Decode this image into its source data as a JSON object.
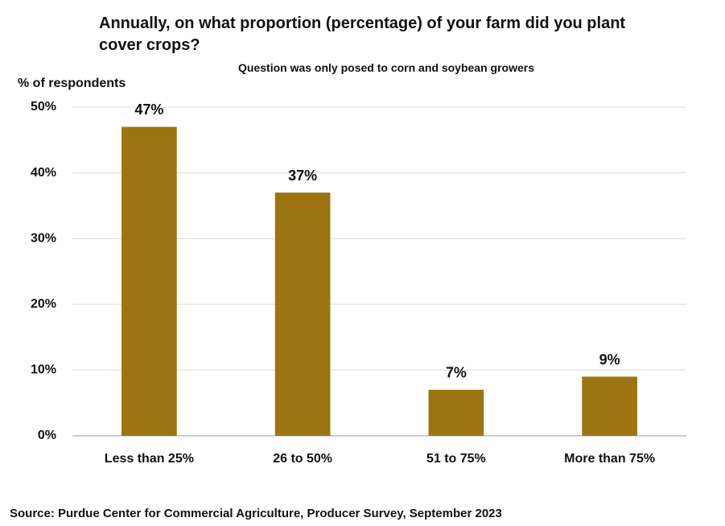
{
  "chart_data": {
    "type": "bar",
    "title": "Annually, on what proportion (percentage) of your farm did you plant cover crops?",
    "subtitle": "Question was only posed to corn and soybean growers",
    "y_label": "% of respondents",
    "source": "Source: Purdue Center for Commercial Agriculture, Producer Survey, September 2023",
    "categories": [
      "Less than 25%",
      "26 to 50%",
      "51 to 75%",
      "More than 75%"
    ],
    "values": [
      47,
      37,
      7,
      9
    ],
    "value_labels": [
      "47%",
      "37%",
      "7%",
      "9%"
    ],
    "color": "#9c7512",
    "ylim": [
      0,
      50
    ],
    "yticks": [
      {
        "value": 0,
        "label": "0%"
      },
      {
        "value": 10,
        "label": "10%"
      },
      {
        "value": 20,
        "label": "20%"
      },
      {
        "value": 30,
        "label": "30%"
      },
      {
        "value": 40,
        "label": "40%"
      },
      {
        "value": 50,
        "label": "50%"
      }
    ],
    "grid": true
  }
}
